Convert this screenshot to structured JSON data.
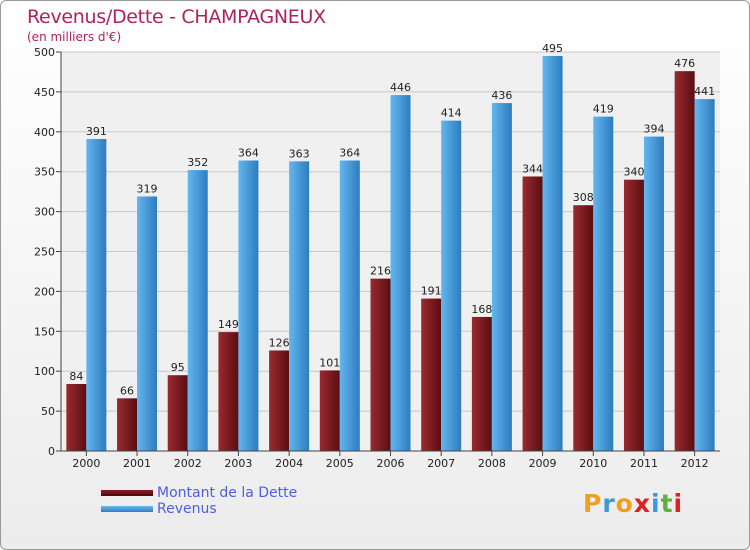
{
  "title": "Revenus/Dette - CHAMPAGNEUX",
  "subtitle": "(en milliers d'€)",
  "logo": {
    "letters": [
      "P",
      "r",
      "o",
      "x",
      "i",
      "t",
      "i"
    ],
    "colors": [
      "#f0a020",
      "#3a9ad8",
      "#f0a020",
      "#e02020",
      "#3a9ad8",
      "#60b040",
      "#e02020"
    ]
  },
  "chart_data": {
    "type": "bar",
    "categories": [
      "2000",
      "2001",
      "2002",
      "2003",
      "2004",
      "2005",
      "2006",
      "2007",
      "2008",
      "2009",
      "2010",
      "2011",
      "2012"
    ],
    "series": [
      {
        "name": "Montant de la Dette",
        "color": "#7a1a20",
        "values": [
          84,
          66,
          95,
          149,
          126,
          101,
          216,
          191,
          168,
          344,
          308,
          340,
          476
        ]
      },
      {
        "name": "Revenus",
        "color": "#4aa0e0",
        "values": [
          391,
          319,
          352,
          364,
          363,
          364,
          446,
          414,
          436,
          495,
          419,
          394,
          441
        ]
      }
    ],
    "ylim": [
      0,
      500
    ],
    "yticks": [
      0,
      50,
      100,
      150,
      200,
      250,
      300,
      350,
      400,
      450,
      500
    ],
    "grid": true,
    "legend": "bottom-left"
  }
}
